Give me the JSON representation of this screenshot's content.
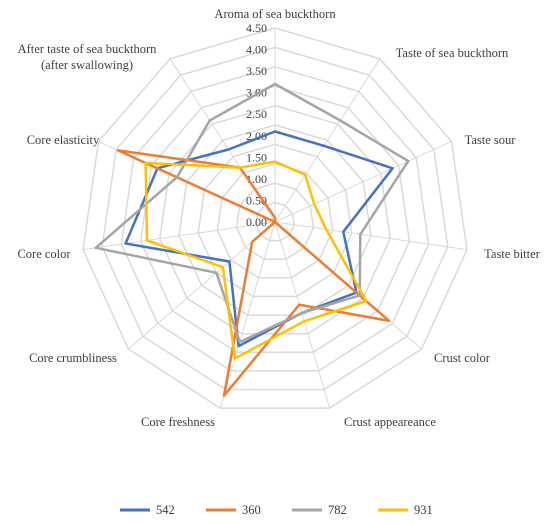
{
  "chart_data": {
    "type": "radar",
    "categories": [
      "Aroma of sea buckthorn",
      "Taste of sea buckthorn",
      "Taste sour",
      "Taste bitter",
      "Crust color",
      "Crust appeareance",
      "Core freshness",
      "Core crumbliness",
      "Core color",
      "Core elasticity",
      "After taste of sea buckthorn (after swallowing)"
    ],
    "category_lines": [
      [
        "Aroma of sea buckthorn"
      ],
      [
        "Taste of sea buckthorn"
      ],
      [
        "Taste sour"
      ],
      [
        "Taste bitter"
      ],
      [
        "Crust color"
      ],
      [
        "Crust appeareance"
      ],
      [
        "Core freshness"
      ],
      [
        "Core crumbliness"
      ],
      [
        "Core color"
      ],
      [
        "Core elasticity"
      ],
      [
        "After taste of sea buckthorn",
        "(after swallowing)"
      ]
    ],
    "tick_labels": [
      "0.00",
      "0.50",
      "1.00",
      "1.50",
      "2.00",
      "2.50",
      "3.00",
      "3.50",
      "4.00",
      "4.50"
    ],
    "rlim": [
      0,
      4.5
    ],
    "grid": true,
    "legend_position": "bottom",
    "series": [
      {
        "name": "542",
        "color": "#4472c4",
        "values": [
          2.1,
          2.1,
          3.0,
          1.6,
          2.5,
          2.2,
          3.0,
          1.4,
          3.5,
          3.0,
          2.0
        ]
      },
      {
        "name": "360",
        "color": "#ed7d31",
        "values": [
          0.1,
          0.0,
          0.0,
          0.0,
          3.5,
          2.0,
          4.2,
          0.7,
          0.0,
          4.0,
          1.5
        ]
      },
      {
        "name": "782",
        "color": "#a5a5a5",
        "values": [
          3.2,
          2.8,
          3.4,
          2.0,
          2.6,
          2.2,
          2.9,
          1.8,
          4.2,
          2.5,
          2.8
        ]
      },
      {
        "name": "931",
        "color": "#ffc000",
        "values": [
          1.4,
          1.3,
          1.0,
          1.2,
          2.8,
          2.4,
          3.3,
          1.6,
          3.0,
          3.3,
          1.5
        ]
      }
    ]
  }
}
